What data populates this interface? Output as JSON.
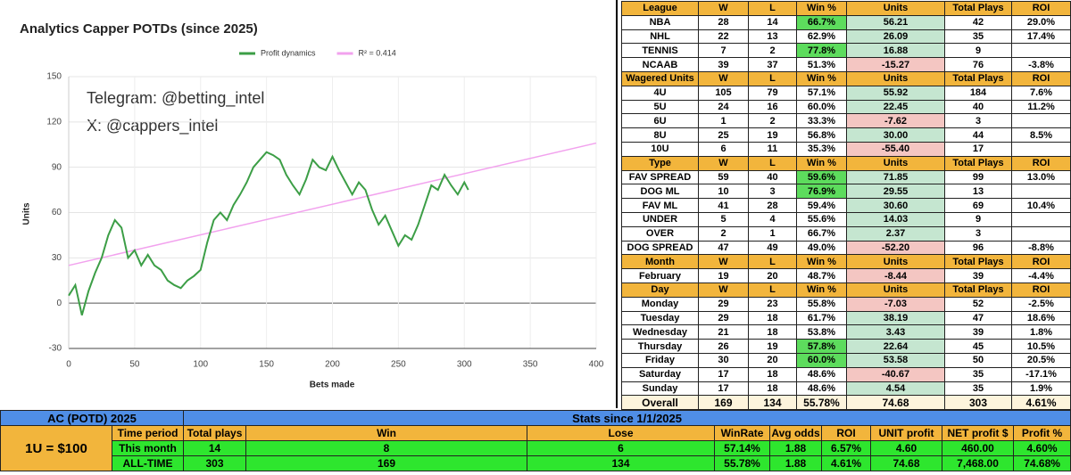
{
  "chart_data": {
    "type": "line",
    "title": "Analytics Capper POTDs (since 2025)",
    "annotations": [
      "Telegram: @betting_intel",
      "X: @cappers_intel"
    ],
    "x_label": "Bets made",
    "y_label": "Units",
    "xlim": [
      0,
      400
    ],
    "xticks": [
      0,
      50,
      100,
      150,
      200,
      250,
      300,
      350,
      400
    ],
    "ylim": [
      -30,
      150
    ],
    "yticks": [
      -30,
      0,
      30,
      60,
      90,
      120,
      150
    ],
    "grid": true,
    "legend": "top",
    "series": [
      {
        "name": "Profit dynamics",
        "color": "#3c9e46",
        "x": [
          0,
          5,
          10,
          15,
          20,
          25,
          30,
          35,
          40,
          45,
          50,
          55,
          60,
          65,
          70,
          75,
          80,
          85,
          90,
          95,
          100,
          105,
          110,
          115,
          120,
          125,
          130,
          135,
          140,
          145,
          150,
          155,
          160,
          165,
          170,
          175,
          180,
          185,
          190,
          195,
          200,
          205,
          210,
          215,
          220,
          225,
          230,
          235,
          240,
          245,
          250,
          255,
          260,
          265,
          270,
          275,
          280,
          285,
          290,
          295,
          300,
          303
        ],
        "values": [
          5,
          12,
          -8,
          8,
          20,
          30,
          45,
          55,
          50,
          30,
          35,
          25,
          32,
          25,
          22,
          15,
          12,
          10,
          15,
          18,
          22,
          40,
          55,
          60,
          55,
          65,
          72,
          80,
          90,
          95,
          100,
          98,
          95,
          85,
          78,
          72,
          82,
          95,
          90,
          88,
          97,
          88,
          80,
          72,
          80,
          75,
          62,
          52,
          58,
          48,
          38,
          45,
          42,
          52,
          65,
          78,
          75,
          85,
          78,
          72,
          80,
          75
        ]
      },
      {
        "name": "R² = 0.414",
        "color": "#f2a2ee",
        "x": [
          0,
          400
        ],
        "values": [
          25,
          106
        ]
      }
    ]
  },
  "breakdown": {
    "sections": [
      {
        "header": [
          "League",
          "W",
          "L",
          "Win %",
          "Units",
          "Total Plays",
          "ROI"
        ],
        "win_green": [
          0,
          2
        ],
        "rows": [
          [
            "NBA",
            "28",
            "14",
            "66.7%",
            "56.21",
            "42",
            "29.0%"
          ],
          [
            "NHL",
            "22",
            "13",
            "62.9%",
            "26.09",
            "35",
            "17.4%"
          ],
          [
            "TENNIS",
            "7",
            "2",
            "77.8%",
            "16.88",
            "9",
            null
          ],
          [
            "NCAAB",
            "39",
            "37",
            "51.3%",
            "-15.27",
            "76",
            "-3.8%"
          ]
        ]
      },
      {
        "header": [
          "Wagered Units",
          "W",
          "L",
          "Win %",
          "Units",
          "Total Plays",
          "ROI"
        ],
        "win_green": [],
        "rows": [
          [
            "4U",
            "105",
            "79",
            "57.1%",
            "55.92",
            "184",
            "7.6%"
          ],
          [
            "5U",
            "24",
            "16",
            "60.0%",
            "22.45",
            "40",
            "11.2%"
          ],
          [
            "6U",
            "1",
            "2",
            "33.3%",
            "-7.62",
            "3",
            null
          ],
          [
            "8U",
            "25",
            "19",
            "56.8%",
            "30.00",
            "44",
            "8.5%"
          ],
          [
            "10U",
            "6",
            "11",
            "35.3%",
            "-55.40",
            "17",
            null
          ]
        ]
      },
      {
        "header": [
          "Type",
          "W",
          "L",
          "Win %",
          "Units",
          "Total Plays",
          "ROI"
        ],
        "win_green": [
          0,
          1
        ],
        "rows": [
          [
            "FAV SPREAD",
            "59",
            "40",
            "59.6%",
            "71.85",
            "99",
            "13.0%"
          ],
          [
            "DOG ML",
            "10",
            "3",
            "76.9%",
            "29.55",
            "13",
            null
          ],
          [
            "FAV ML",
            "41",
            "28",
            "59.4%",
            "30.60",
            "69",
            "10.4%"
          ],
          [
            "UNDER",
            "5",
            "4",
            "55.6%",
            "14.03",
            "9",
            null
          ],
          [
            "OVER",
            "2",
            "1",
            "66.7%",
            "2.37",
            "3",
            null
          ],
          [
            "DOG SPREAD",
            "47",
            "49",
            "49.0%",
            "-52.20",
            "96",
            "-8.8%"
          ]
        ]
      },
      {
        "header": [
          "Month",
          "W",
          "L",
          "Win %",
          "Units",
          "Total Plays",
          "ROI"
        ],
        "win_green": [],
        "rows": [
          [
            "February",
            "19",
            "20",
            "48.7%",
            "-8.44",
            "39",
            "-4.4%"
          ]
        ]
      },
      {
        "header": [
          "Day",
          "W",
          "L",
          "Win %",
          "Units",
          "Total Plays",
          "ROI"
        ],
        "win_green": [
          3,
          4
        ],
        "rows": [
          [
            "Monday",
            "29",
            "23",
            "55.8%",
            "-7.03",
            "52",
            "-2.5%"
          ],
          [
            "Tuesday",
            "29",
            "18",
            "61.7%",
            "38.19",
            "47",
            "18.6%"
          ],
          [
            "Wednesday",
            "21",
            "18",
            "53.8%",
            "3.43",
            "39",
            "1.8%"
          ],
          [
            "Thursday",
            "26",
            "19",
            "57.8%",
            "22.64",
            "45",
            "10.5%"
          ],
          [
            "Friday",
            "30",
            "20",
            "60.0%",
            "53.58",
            "50",
            "20.5%"
          ],
          [
            "Saturday",
            "17",
            "18",
            "48.6%",
            "-40.67",
            "35",
            "-17.1%"
          ],
          [
            "Sunday",
            "17",
            "18",
            "48.6%",
            "4.54",
            "35",
            "1.9%"
          ]
        ]
      }
    ],
    "overall": [
      "Overall",
      "169",
      "134",
      "55.78%",
      "74.68",
      "303",
      "4.61%"
    ]
  },
  "summary": {
    "title": "AC (POTD) 2025",
    "subtitle": "Stats since 1/1/2025",
    "unit": "1U = $100",
    "columns": [
      "Time period",
      "Total plays",
      "Win",
      "Lose",
      "WinRate",
      "Avg odds",
      "ROI",
      "UNIT profit",
      "NET profit $",
      "Profit %"
    ],
    "rows": [
      [
        "This month",
        "14",
        "8",
        "6",
        "57.14%",
        "1.88",
        "6.57%",
        "4.60",
        "460.00",
        "4.60%"
      ],
      [
        "ALL-TIME",
        "303",
        "169",
        "134",
        "55.78%",
        "1.88",
        "4.61%",
        "74.68",
        "7,468.00",
        "74.68%"
      ]
    ]
  }
}
